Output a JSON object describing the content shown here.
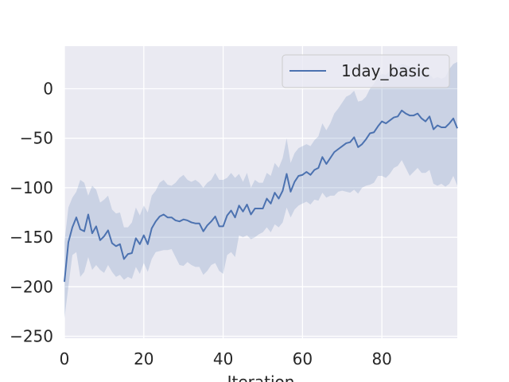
{
  "chart_data": {
    "type": "line",
    "title": "",
    "xlabel": "Iteration",
    "ylabel": "",
    "xlim": [
      0,
      99
    ],
    "ylim": [
      -252,
      43
    ],
    "xticks": [
      0,
      20,
      40,
      60,
      80
    ],
    "yticks": [
      -250,
      -200,
      -150,
      -100,
      -50,
      0
    ],
    "ytick_labels": [
      "−250",
      "−200",
      "−150",
      "−100",
      "−50",
      "0"
    ],
    "grid": true,
    "legend_position": "top-right",
    "colors": {
      "plot_background": "#eaeaf2",
      "grid": "#ffffff",
      "line": "#4c72b0",
      "band": "#4c72b0"
    },
    "series": [
      {
        "name": "1day_basic",
        "x": [
          0,
          1,
          2,
          3,
          4,
          5,
          6,
          7,
          8,
          9,
          10,
          11,
          12,
          13,
          14,
          15,
          16,
          17,
          18,
          19,
          20,
          21,
          22,
          23,
          24,
          25,
          26,
          27,
          28,
          29,
          30,
          31,
          32,
          33,
          34,
          35,
          36,
          37,
          38,
          39,
          40,
          41,
          42,
          43,
          44,
          45,
          46,
          47,
          48,
          49,
          50,
          51,
          52,
          53,
          54,
          55,
          56,
          57,
          58,
          59,
          60,
          61,
          62,
          63,
          64,
          65,
          66,
          67,
          68,
          69,
          70,
          71,
          72,
          73,
          74,
          75,
          76,
          77,
          78,
          79,
          80,
          81,
          82,
          83,
          84,
          85,
          86,
          87,
          88,
          89,
          90,
          91,
          92,
          93,
          94,
          95,
          96,
          97,
          98,
          99
        ],
        "y": [
          -195,
          -155,
          -140,
          -130,
          -142,
          -144,
          -127,
          -146,
          -139,
          -153,
          -149,
          -143,
          -156,
          -159,
          -157,
          -172,
          -167,
          -166,
          -151,
          -157,
          -148,
          -157,
          -141,
          -134,
          -129,
          -127,
          -130,
          -130,
          -133,
          -134,
          -132,
          -133,
          -135,
          -136,
          -136,
          -144,
          -138,
          -134,
          -129,
          -139,
          -139,
          -128,
          -123,
          -130,
          -118,
          -124,
          -117,
          -127,
          -121,
          -121,
          -121,
          -111,
          -116,
          -105,
          -111,
          -103,
          -86,
          -104,
          -94,
          -88,
          -87,
          -84,
          -87,
          -82,
          -80,
          -69,
          -76,
          -70,
          -64,
          -61,
          -58,
          -55,
          -54,
          -49,
          -59,
          -56,
          -51,
          -45,
          -44,
          -38,
          -33,
          -35,
          -32,
          -29,
          -28,
          -22,
          -25,
          -27,
          -27,
          -25,
          -30,
          -33,
          -28,
          -41,
          -37,
          -39,
          -39,
          -35,
          -30,
          -40
        ],
        "lower": [
          -232,
          -200,
          -168,
          -165,
          -190,
          -185,
          -170,
          -183,
          -178,
          -183,
          -186,
          -178,
          -185,
          -190,
          -188,
          -193,
          -190,
          -192,
          -180,
          -187,
          -176,
          -185,
          -172,
          -165,
          -164,
          -163,
          -163,
          -162,
          -170,
          -178,
          -179,
          -175,
          -178,
          -180,
          -180,
          -188,
          -184,
          -178,
          -176,
          -184,
          -187,
          -168,
          -165,
          -170,
          -148,
          -150,
          -148,
          -152,
          -150,
          -147,
          -145,
          -140,
          -145,
          -137,
          -140,
          -135,
          -120,
          -130,
          -122,
          -118,
          -116,
          -114,
          -117,
          -112,
          -113,
          -105,
          -110,
          -108,
          -108,
          -104,
          -103,
          -104,
          -105,
          -102,
          -106,
          -100,
          -98,
          -97,
          -95,
          -88,
          -88,
          -90,
          -86,
          -80,
          -78,
          -72,
          -80,
          -88,
          -84,
          -80,
          -85,
          -85,
          -82,
          -96,
          -98,
          -96,
          -99,
          -96,
          -88,
          -98
        ],
        "upper": [
          -155,
          -120,
          -110,
          -104,
          -92,
          -95,
          -108,
          -98,
          -102,
          -115,
          -112,
          -108,
          -122,
          -126,
          -125,
          -140,
          -140,
          -135,
          -120,
          -128,
          -118,
          -125,
          -108,
          -103,
          -95,
          -92,
          -97,
          -98,
          -95,
          -90,
          -87,
          -92,
          -94,
          -92,
          -95,
          -100,
          -95,
          -92,
          -85,
          -92,
          -92,
          -90,
          -85,
          -90,
          -86,
          -94,
          -85,
          -100,
          -92,
          -95,
          -95,
          -85,
          -88,
          -75,
          -80,
          -70,
          -50,
          -75,
          -65,
          -60,
          -58,
          -56,
          -58,
          -52,
          -48,
          -35,
          -42,
          -35,
          -25,
          -20,
          -14,
          -8,
          -6,
          -2,
          -13,
          -12,
          -8,
          0,
          5,
          12,
          15,
          14,
          18,
          20,
          22,
          25,
          24,
          22,
          22,
          20,
          18,
          14,
          15,
          10,
          12,
          10,
          12,
          20,
          25,
          27
        ]
      }
    ]
  }
}
